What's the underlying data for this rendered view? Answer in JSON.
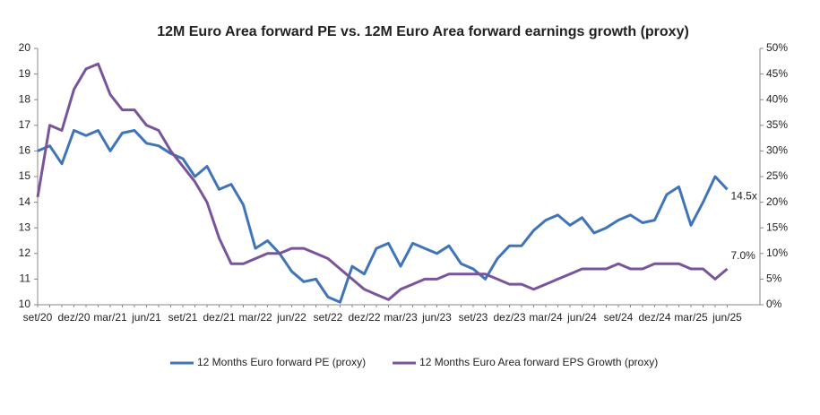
{
  "chart_data": {
    "type": "line",
    "title": "12M Euro Area forward PE vs. 12M Euro Area forward earnings growth (proxy)",
    "categories": [
      "set/20",
      null,
      null,
      "dez/20",
      null,
      null,
      "mar/21",
      null,
      null,
      "jun/21",
      null,
      null,
      "set/21",
      null,
      null,
      "dez/21",
      null,
      null,
      "mar/22",
      null,
      null,
      "jun/22",
      null,
      null,
      "set/22",
      null,
      null,
      "dez/22",
      null,
      null,
      "mar/23",
      null,
      null,
      "jun/23",
      null,
      null,
      "set/23",
      null,
      null,
      "dez/23",
      null,
      null,
      "mar/24",
      null,
      null,
      "jun/24",
      null,
      null,
      "set/24",
      null,
      null,
      "dez/24",
      null,
      null,
      "mar/25",
      null,
      null,
      "jun/25"
    ],
    "series": [
      {
        "name": "12 Months Euro forward PE (proxy)",
        "color": "#3f74b8",
        "values": [
          16.0,
          16.2,
          15.5,
          16.8,
          16.6,
          16.8,
          16.0,
          16.7,
          16.8,
          16.3,
          16.2,
          15.9,
          15.7,
          15.0,
          15.4,
          14.5,
          14.7,
          13.9,
          12.2,
          12.5,
          12.0,
          11.3,
          10.9,
          11.0,
          10.3,
          10.1,
          11.5,
          11.2,
          12.2,
          12.4,
          11.5,
          12.4,
          12.2,
          12.0,
          12.3,
          11.6,
          11.4,
          11.0,
          11.8,
          12.3,
          12.3,
          12.9,
          13.3,
          13.5,
          13.1,
          13.4,
          12.8,
          13.0,
          13.3,
          13.5,
          13.2,
          13.3,
          14.3,
          14.6,
          13.1,
          14.0,
          15.0,
          14.5
        ]
      },
      {
        "name": "12 Months Euro Area forward EPS Growth (proxy)",
        "color": "#7a549a",
        "axis": "y2",
        "values": [
          21,
          35,
          34,
          42,
          46,
          47,
          41,
          38,
          38,
          35,
          34,
          30,
          27,
          24,
          20,
          13,
          8,
          8,
          9,
          10,
          10,
          11,
          11,
          10,
          9,
          7,
          5,
          3,
          2,
          1,
          3,
          4,
          5,
          5,
          6,
          6,
          6,
          6,
          5,
          4,
          4,
          3,
          4,
          5,
          6,
          7,
          7,
          7,
          8,
          7,
          7,
          8,
          8,
          8,
          7,
          7,
          5,
          7.0
        ]
      }
    ],
    "annotations": [
      "14.5x",
      "7.0%"
    ],
    "ylim": [
      10,
      20
    ],
    "yticks": [
      10,
      11,
      12,
      13,
      14,
      15,
      16,
      17,
      18,
      19,
      20
    ],
    "y2lim": [
      0,
      50
    ],
    "y2ticks": [
      {
        "value": 0,
        "label": "0%"
      },
      {
        "value": 5,
        "label": "5%"
      },
      {
        "value": 10,
        "label": "10%"
      },
      {
        "value": 15,
        "label": "15%"
      },
      {
        "value": 20,
        "label": "20%"
      },
      {
        "value": 25,
        "label": "25%"
      },
      {
        "value": 30,
        "label": "30%"
      },
      {
        "value": 35,
        "label": "35%"
      },
      {
        "value": 40,
        "label": "40%"
      },
      {
        "value": 45,
        "label": "45%"
      },
      {
        "value": 50,
        "label": "50%"
      }
    ],
    "legend": "bottom"
  }
}
